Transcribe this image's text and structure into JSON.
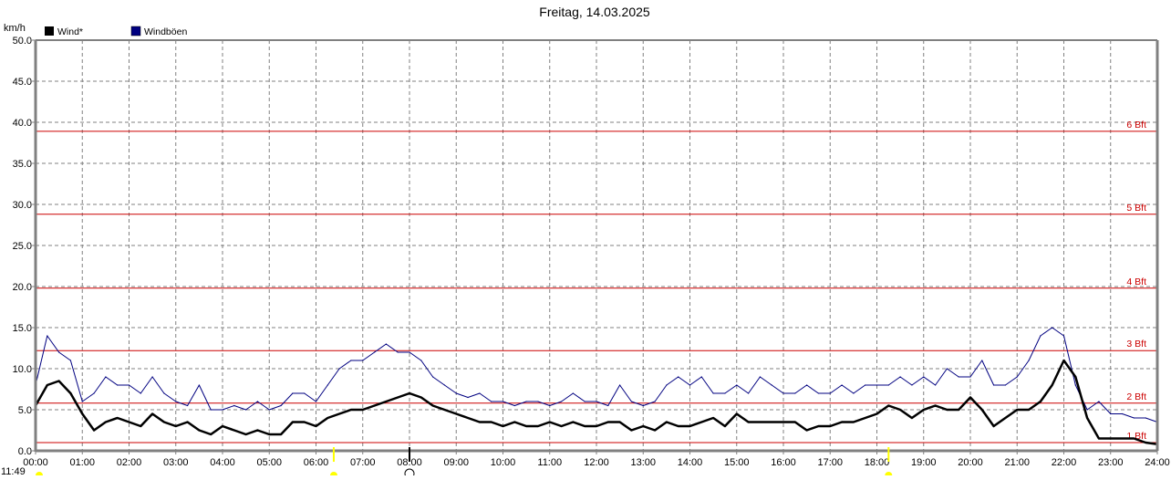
{
  "chart_data": {
    "type": "line",
    "title": "Freitag, 14.03.2025",
    "ylabel": "km/h",
    "ylim": [
      0,
      50
    ],
    "yticks": [
      "0.0",
      "5.0",
      "10.0",
      "15.0",
      "20.0",
      "25.0",
      "30.0",
      "35.0",
      "40.0",
      "45.0",
      "50.0"
    ],
    "xticks": [
      "00:00",
      "01:00",
      "02:00",
      "03:00",
      "04:00",
      "05:00",
      "06:00",
      "07:00",
      "08:00",
      "09:00",
      "10:00",
      "11:00",
      "12:00",
      "13:00",
      "14:00",
      "15:00",
      "16:00",
      "17:00",
      "18:00",
      "19:00",
      "20:00",
      "21:00",
      "22:00",
      "23:00",
      "24:00"
    ],
    "xlim_hours": [
      0,
      24
    ],
    "x_step_minutes": 15,
    "grid": true,
    "legend_placement": "top-left",
    "series": [
      {
        "name": "Windböen",
        "color": "#000080",
        "values": [
          8,
          14,
          12,
          11,
          6,
          7,
          9,
          8,
          8,
          7,
          9,
          7,
          6,
          5.5,
          8,
          5,
          5,
          5.5,
          5,
          6,
          5,
          5.5,
          7,
          7,
          6,
          8,
          10,
          11,
          11,
          12,
          13,
          12,
          12,
          11,
          9,
          8,
          7,
          6.5,
          7,
          6,
          6,
          5.5,
          6,
          6,
          5.5,
          6,
          7,
          6,
          6,
          5.5,
          8,
          6,
          5.5,
          6,
          8,
          9,
          8,
          9,
          7,
          7,
          8,
          7,
          9,
          8,
          7,
          7,
          8,
          7,
          7,
          8,
          7,
          8,
          8,
          8,
          9,
          8,
          9,
          8,
          10,
          9,
          9,
          11,
          8,
          8,
          9,
          11,
          14,
          15,
          14,
          8,
          5,
          6,
          4.5,
          4.5,
          4,
          4,
          3.5
        ]
      },
      {
        "name": "Wind*",
        "color": "#000000",
        "values": [
          5.5,
          8,
          8.5,
          7,
          4.5,
          2.5,
          3.5,
          4,
          3.5,
          3,
          4.5,
          3.5,
          3,
          3.5,
          2.5,
          2,
          3,
          2.5,
          2,
          2.5,
          2,
          2,
          3.5,
          3.5,
          3,
          4,
          4.5,
          5,
          5,
          5.5,
          6,
          6.5,
          7,
          6.5,
          5.5,
          5,
          4.5,
          4,
          3.5,
          3.5,
          3,
          3.5,
          3,
          3,
          3.5,
          3,
          3.5,
          3,
          3,
          3.5,
          3.5,
          2.5,
          3,
          2.5,
          3.5,
          3,
          3,
          3.5,
          4,
          3,
          4.5,
          3.5,
          3.5,
          3.5,
          3.5,
          3.5,
          2.5,
          3,
          3,
          3.5,
          3.5,
          4,
          4.5,
          5.5,
          5,
          4,
          5,
          5.5,
          5,
          5,
          6.5,
          5,
          3,
          4,
          5,
          5,
          6,
          8,
          11,
          9,
          4,
          1.5,
          1.5,
          1.5,
          1.5,
          1,
          0.8
        ]
      }
    ],
    "reference_lines": [
      {
        "label": "1 Bft",
        "value": 1.0
      },
      {
        "label": "2 Bft",
        "value": 5.8
      },
      {
        "label": "3 Bft",
        "value": 12.2
      },
      {
        "label": "4 Bft",
        "value": 19.8
      },
      {
        "label": "5 Bft",
        "value": 28.8
      },
      {
        "label": "6 Bft",
        "value": 38.9
      }
    ],
    "reference_color": "#cc0000",
    "markers": [
      {
        "kind": "sunrise",
        "time_hours": 6.38,
        "color": "#ffff00"
      },
      {
        "kind": "current",
        "time_hours": 8.0,
        "color": "#000000"
      },
      {
        "kind": "sunset",
        "time_hours": 18.25,
        "color": "#ffff00"
      }
    ],
    "footer_time": "11:49"
  }
}
